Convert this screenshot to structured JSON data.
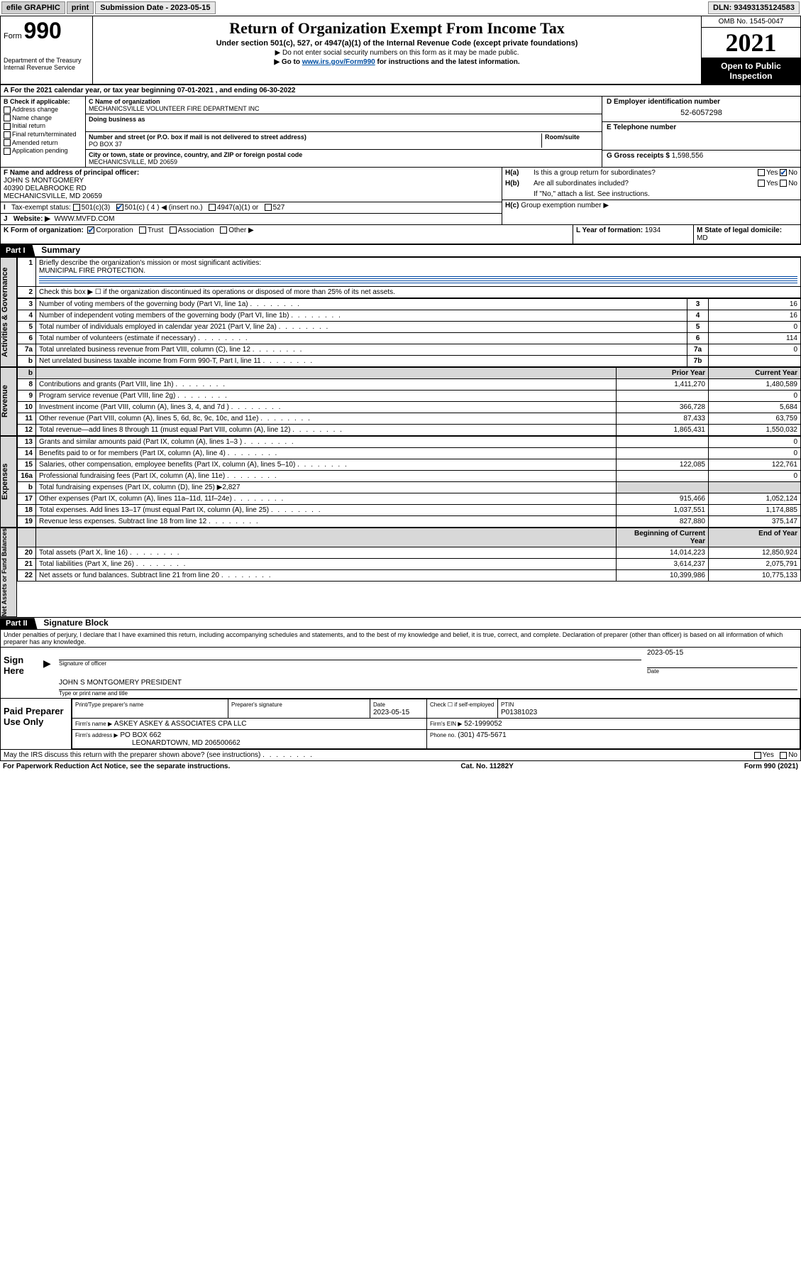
{
  "topbar": {
    "efile": "efile GRAPHIC",
    "print": "print",
    "sub_label": "Submission Date - 2023-05-15",
    "dln": "DLN: 93493135124583"
  },
  "header": {
    "form_sm": "Form",
    "form_no": "990",
    "dept": "Department of the Treasury",
    "irs": "Internal Revenue Service",
    "title": "Return of Organization Exempt From Income Tax",
    "sub1": "Under section 501(c), 527, or 4947(a)(1) of the Internal Revenue Code (except private foundations)",
    "sub2": "▶ Do not enter social security numbers on this form as it may be made public.",
    "sub3_pre": "▶ Go to ",
    "sub3_link": "www.irs.gov/Form990",
    "sub3_post": " for instructions and the latest information.",
    "omb": "OMB No. 1545-0047",
    "year": "2021",
    "open": "Open to Public Inspection"
  },
  "A": {
    "text": "For the 2021 calendar year, or tax year beginning ",
    "begin": "07-01-2021",
    "mid": " , and ending ",
    "end": "06-30-2022"
  },
  "B": {
    "hdr": "B Check if applicable:",
    "items": [
      "Address change",
      "Name change",
      "Initial return",
      "Final return/terminated",
      "Amended return",
      "Application pending"
    ]
  },
  "C": {
    "name_lbl": "C Name of organization",
    "name": "MECHANICSVILLE VOLUNTEER FIRE DEPARTMENT INC",
    "dba_lbl": "Doing business as",
    "dba": "",
    "addr_lbl": "Number and street (or P.O. box if mail is not delivered to street address)",
    "suite_lbl": "Room/suite",
    "addr1": "PO BOX 37",
    "addr2": "40390 DELABROOKE RD",
    "city_lbl": "City or town, state or province, country, and ZIP or foreign postal code",
    "city": "MECHANICSVILLE, MD  20659"
  },
  "D": {
    "lbl": "D Employer identification number",
    "val": "52-6057298"
  },
  "E": {
    "lbl": "E Telephone number",
    "val": ""
  },
  "G": {
    "lbl": "G Gross receipts $",
    "val": "1,598,556"
  },
  "F": {
    "lbl": "F  Name and address of principal officer:",
    "name": "JOHN S MONTGOMERY",
    "addr": "40390 DELABROOKE RD",
    "city": "MECHANICSVILLE, MD  20659"
  },
  "H": {
    "a": "Is this a group return for subordinates?",
    "b": "Are all subordinates included?",
    "b_note": "If \"No,\" attach a list. See instructions.",
    "c": "Group exemption number ▶",
    "yes": "Yes",
    "no": "No"
  },
  "I": {
    "lbl": "Tax-exempt status:",
    "opts": [
      "501(c)(3)",
      "501(c) ( 4 ) ◀ (insert no.)",
      "4947(a)(1) or",
      "527"
    ]
  },
  "J": {
    "lbl": "Website: ▶",
    "val": "WWW.MVFD.COM"
  },
  "K": {
    "lbl": "K Form of organization:",
    "opts": [
      "Corporation",
      "Trust",
      "Association",
      "Other ▶"
    ]
  },
  "L": {
    "lbl": "L Year of formation:",
    "val": "1934"
  },
  "M": {
    "lbl": "M State of legal domicile:",
    "val": "MD"
  },
  "part1": {
    "hdr": "Part I",
    "title": "Summary",
    "l1": "Briefly describe the organization's mission or most significant activities:",
    "mission": "MUNICIPAL FIRE PROTECTION.",
    "l2": "Check this box ▶ ☐  if the organization discontinued its operations or disposed of more than 25% of its net assets.",
    "rows_gov": [
      {
        "n": "3",
        "t": "Number of voting members of the governing body (Part VI, line 1a)",
        "box": "3",
        "v": "16"
      },
      {
        "n": "4",
        "t": "Number of independent voting members of the governing body (Part VI, line 1b)",
        "box": "4",
        "v": "16"
      },
      {
        "n": "5",
        "t": "Total number of individuals employed in calendar year 2021 (Part V, line 2a)",
        "box": "5",
        "v": "0"
      },
      {
        "n": "6",
        "t": "Total number of volunteers (estimate if necessary)",
        "box": "6",
        "v": "114"
      },
      {
        "n": "7a",
        "t": "Total unrelated business revenue from Part VIII, column (C), line 12",
        "box": "7a",
        "v": "0"
      },
      {
        "n": "b",
        "t": "Net unrelated business taxable income from Form 990-T, Part I, line 11",
        "box": "7b",
        "v": ""
      }
    ],
    "col_prior": "Prior Year",
    "col_curr": "Current Year",
    "rev": [
      {
        "n": "8",
        "t": "Contributions and grants (Part VIII, line 1h)",
        "p": "1,411,270",
        "c": "1,480,589"
      },
      {
        "n": "9",
        "t": "Program service revenue (Part VIII, line 2g)",
        "p": "",
        "c": "0"
      },
      {
        "n": "10",
        "t": "Investment income (Part VIII, column (A), lines 3, 4, and 7d )",
        "p": "366,728",
        "c": "5,684"
      },
      {
        "n": "11",
        "t": "Other revenue (Part VIII, column (A), lines 5, 6d, 8c, 9c, 10c, and 11e)",
        "p": "87,433",
        "c": "63,759"
      },
      {
        "n": "12",
        "t": "Total revenue—add lines 8 through 11 (must equal Part VIII, column (A), line 12)",
        "p": "1,865,431",
        "c": "1,550,032"
      }
    ],
    "exp": [
      {
        "n": "13",
        "t": "Grants and similar amounts paid (Part IX, column (A), lines 1–3 )",
        "p": "",
        "c": "0"
      },
      {
        "n": "14",
        "t": "Benefits paid to or for members (Part IX, column (A), line 4)",
        "p": "",
        "c": "0"
      },
      {
        "n": "15",
        "t": "Salaries, other compensation, employee benefits (Part IX, column (A), lines 5–10)",
        "p": "122,085",
        "c": "122,761"
      },
      {
        "n": "16a",
        "t": "Professional fundraising fees (Part IX, column (A), line 11e)",
        "p": "",
        "c": "0"
      },
      {
        "n": "b",
        "t": "Total fundraising expenses (Part IX, column (D), line 25) ▶2,827",
        "p": null,
        "c": null
      },
      {
        "n": "17",
        "t": "Other expenses (Part IX, column (A), lines 11a–11d, 11f–24e)",
        "p": "915,466",
        "c": "1,052,124"
      },
      {
        "n": "18",
        "t": "Total expenses. Add lines 13–17 (must equal Part IX, column (A), line 25)",
        "p": "1,037,551",
        "c": "1,174,885"
      },
      {
        "n": "19",
        "t": "Revenue less expenses. Subtract line 18 from line 12",
        "p": "827,880",
        "c": "375,147"
      }
    ],
    "col_begin": "Beginning of Current Year",
    "col_end": "End of Year",
    "net": [
      {
        "n": "20",
        "t": "Total assets (Part X, line 16)",
        "p": "14,014,223",
        "c": "12,850,924"
      },
      {
        "n": "21",
        "t": "Total liabilities (Part X, line 26)",
        "p": "3,614,237",
        "c": "2,075,791"
      },
      {
        "n": "22",
        "t": "Net assets or fund balances. Subtract line 21 from line 20",
        "p": "10,399,986",
        "c": "10,775,133"
      }
    ],
    "side_gov": "Activities & Governance",
    "side_rev": "Revenue",
    "side_exp": "Expenses",
    "side_net": "Net Assets or Fund Balances"
  },
  "part2": {
    "hdr": "Part II",
    "title": "Signature Block",
    "decl": "Under penalties of perjury, I declare that I have examined this return, including accompanying schedules and statements, and to the best of my knowledge and belief, it is true, correct, and complete. Declaration of preparer (other than officer) is based on all information of which preparer has any knowledge.",
    "sign_here": "Sign Here",
    "sig_officer": "Signature of officer",
    "sig_date": "Date",
    "sig_date_val": "2023-05-15",
    "officer_name": "JOHN S MONTGOMERY PRESIDENT",
    "type_name": "Type or print name and title",
    "paid": "Paid Preparer Use Only",
    "prep_name_lbl": "Print/Type preparer's name",
    "prep_sig_lbl": "Preparer's signature",
    "prep_date_lbl": "Date",
    "prep_date": "2023-05-15",
    "check_if": "Check ☐ if self-employed",
    "ptin_lbl": "PTIN",
    "ptin": "P01381023",
    "firm_name_lbl": "Firm's name    ▶",
    "firm_name": "ASKEY ASKEY & ASSOCIATES CPA LLC",
    "firm_ein_lbl": "Firm's EIN ▶",
    "firm_ein": "52-1999052",
    "firm_addr_lbl": "Firm's address ▶",
    "firm_addr1": "PO BOX 662",
    "firm_addr2": "LEONARDTOWN, MD  206500662",
    "phone_lbl": "Phone no.",
    "phone": "(301) 475-5671",
    "may_irs": "May the IRS discuss this return with the preparer shown above? (see instructions)"
  },
  "footer": {
    "left": "For Paperwork Reduction Act Notice, see the separate instructions.",
    "mid": "Cat. No. 11282Y",
    "right": "Form 990 (2021)"
  }
}
